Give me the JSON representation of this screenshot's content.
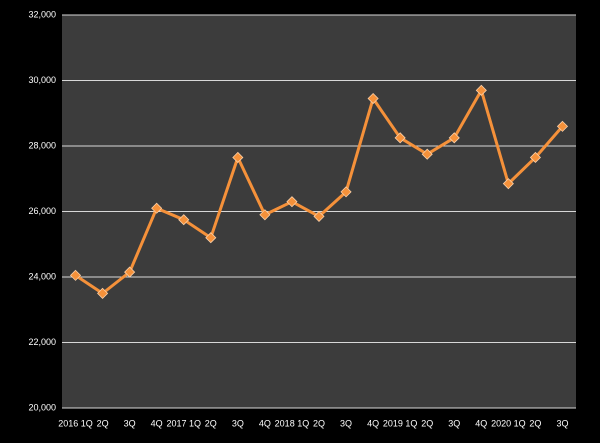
{
  "chart_data": {
    "type": "line",
    "categories": [
      "2016 1Q",
      "2Q",
      "3Q",
      "4Q",
      "2017 1Q",
      "2Q",
      "3Q",
      "4Q",
      "2018 1Q",
      "2Q",
      "3Q",
      "4Q",
      "2019 1Q",
      "2Q",
      "3Q",
      "4Q",
      "2020 1Q",
      "2Q",
      "3Q"
    ],
    "series": [
      {
        "color": "#f5913a",
        "values": [
          24050,
          23500,
          24150,
          26100,
          25750,
          25200,
          27650,
          25900,
          26300,
          25850,
          26600,
          29450,
          28250,
          27750,
          28250,
          29700,
          26850,
          27650,
          28600
        ]
      }
    ],
    "ylim": [
      20000,
      32000
    ],
    "yticks": [
      {
        "value": 20000,
        "label": "20,000"
      },
      {
        "value": 22000,
        "label": "22,000"
      },
      {
        "value": 24000,
        "label": "24,000"
      },
      {
        "value": 26000,
        "label": "26,000"
      },
      {
        "value": 28000,
        "label": "28,000"
      },
      {
        "value": 30000,
        "label": "30,000"
      },
      {
        "value": 32000,
        "label": "32,000"
      }
    ],
    "grid": true
  }
}
